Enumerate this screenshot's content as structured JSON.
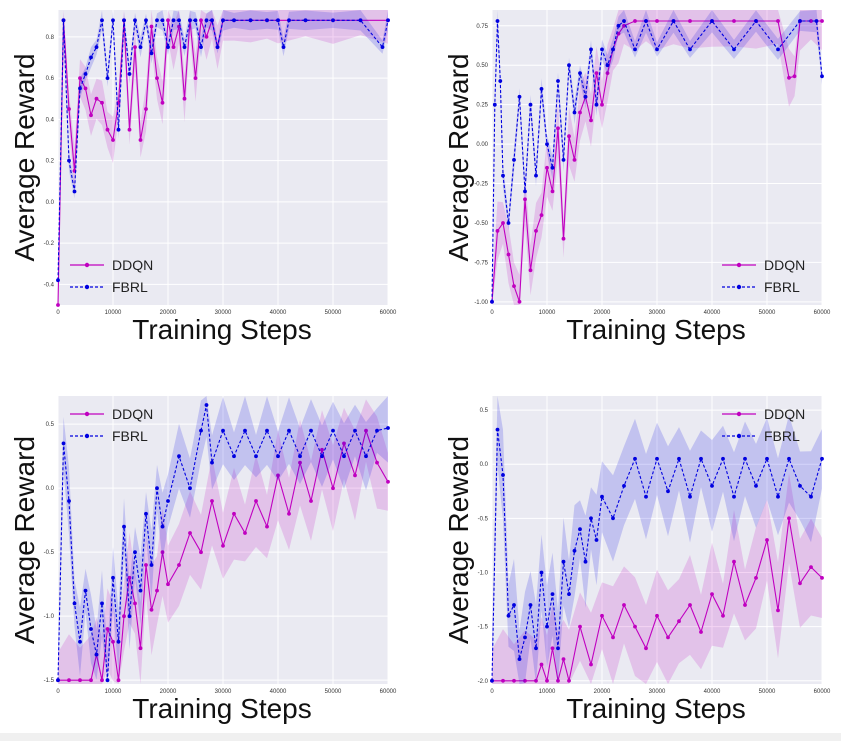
{
  "figure": {
    "colors": {
      "ddqn": "#c000c0",
      "fbrl": "#0000e0",
      "background": "#eaeaf2",
      "grid": "#ffffff"
    }
  },
  "chart_data": [
    {
      "type": "line",
      "title": "",
      "xlabel": "Training Steps",
      "ylabel": "Average Reward",
      "xlim": [
        0,
        60000
      ],
      "ylim": [
        -0.5,
        0.93
      ],
      "xticks": [
        0,
        10000,
        20000,
        30000,
        40000,
        50000,
        60000
      ],
      "xtick_labels": [
        "0",
        "10000",
        "20000",
        "30000",
        "40000",
        "50000",
        "60000"
      ],
      "yticks": [
        -0.4,
        -0.2,
        0.0,
        0.2,
        0.4,
        0.6,
        0.8
      ],
      "ytick_labels": [
        "-0.4",
        "-0.2",
        "0.0",
        "0.2",
        "0.4",
        "0.6",
        "0.8"
      ],
      "legend": "lower-left",
      "series": [
        {
          "name": "DDQN",
          "style": "solid",
          "x": [
            0,
            1000,
            2000,
            3000,
            4000,
            5000,
            6000,
            7000,
            8000,
            9000,
            10000,
            11000,
            12000,
            13000,
            14000,
            15000,
            16000,
            17000,
            18000,
            19000,
            20000,
            21000,
            22000,
            23000,
            24000,
            25000,
            26000,
            27000,
            28000,
            29000,
            30000,
            32000,
            35000,
            38000,
            40000,
            45000,
            50000,
            55000,
            60000
          ],
          "y": [
            -0.5,
            0.88,
            0.45,
            0.15,
            0.6,
            0.55,
            0.42,
            0.5,
            0.48,
            0.35,
            0.3,
            0.48,
            0.88,
            0.35,
            0.75,
            0.3,
            0.45,
            0.85,
            0.6,
            0.48,
            0.88,
            0.75,
            0.85,
            0.5,
            0.88,
            0.6,
            0.88,
            0.8,
            0.88,
            0.75,
            0.88,
            0.88,
            0.88,
            0.88,
            0.88,
            0.88,
            0.88,
            0.88,
            0.88
          ]
        },
        {
          "name": "FBRL",
          "style": "dashed",
          "x": [
            0,
            1000,
            2000,
            3000,
            4000,
            5000,
            6000,
            7000,
            8000,
            9000,
            10000,
            11000,
            12000,
            13000,
            14000,
            15000,
            16000,
            17000,
            18000,
            19000,
            20000,
            21000,
            22000,
            23000,
            24000,
            25000,
            26000,
            27000,
            28000,
            29000,
            30000,
            32000,
            35000,
            38000,
            40000,
            41000,
            42000,
            45000,
            50000,
            55000,
            59000,
            60000
          ],
          "y": [
            -0.38,
            0.88,
            0.2,
            0.05,
            0.55,
            0.62,
            0.7,
            0.75,
            0.88,
            0.6,
            0.88,
            0.35,
            0.88,
            0.62,
            0.88,
            0.75,
            0.88,
            0.72,
            0.88,
            0.88,
            0.75,
            0.88,
            0.88,
            0.75,
            0.88,
            0.88,
            0.75,
            0.88,
            0.88,
            0.75,
            0.88,
            0.88,
            0.88,
            0.88,
            0.88,
            0.75,
            0.88,
            0.88,
            0.88,
            0.88,
            0.75,
            0.88
          ]
        }
      ]
    },
    {
      "type": "line",
      "title": "",
      "xlabel": "Training Steps",
      "ylabel": "Average Reward",
      "xlim": [
        0,
        60000
      ],
      "ylim": [
        -1.02,
        0.85
      ],
      "xticks": [
        0,
        10000,
        20000,
        30000,
        40000,
        50000,
        60000
      ],
      "xtick_labels": [
        "0",
        "10000",
        "20000",
        "30000",
        "40000",
        "50000",
        "60000"
      ],
      "yticks": [
        -1.0,
        -0.75,
        -0.5,
        -0.25,
        0.0,
        0.25,
        0.5,
        0.75
      ],
      "ytick_labels": [
        "-1.00",
        "-0.75",
        "-0.50",
        "-0.25",
        "0.00",
        "0.25",
        "0.50",
        "0.75"
      ],
      "legend": "lower-right",
      "series": [
        {
          "name": "DDQN",
          "style": "solid",
          "x": [
            0,
            1000,
            2000,
            3000,
            4000,
            5000,
            6000,
            7000,
            8000,
            9000,
            10000,
            11000,
            12000,
            13000,
            14000,
            15000,
            16000,
            17000,
            18000,
            19000,
            20000,
            21000,
            22000,
            23000,
            24000,
            26000,
            28000,
            30000,
            33000,
            36000,
            40000,
            44000,
            48000,
            52000,
            54000,
            55000,
            56000,
            58000,
            60000
          ],
          "y": [
            -1.0,
            -0.55,
            -0.5,
            -0.7,
            -0.9,
            -1.0,
            -0.35,
            -0.8,
            -0.55,
            -0.45,
            -0.15,
            -0.3,
            0.1,
            -0.6,
            0.05,
            -0.1,
            0.2,
            0.3,
            0.15,
            0.45,
            0.25,
            0.45,
            0.6,
            0.7,
            0.75,
            0.78,
            0.78,
            0.78,
            0.78,
            0.78,
            0.78,
            0.78,
            0.78,
            0.78,
            0.42,
            0.43,
            0.78,
            0.78,
            0.78
          ]
        },
        {
          "name": "FBRL",
          "style": "dashed",
          "x": [
            0,
            500,
            1000,
            1500,
            2000,
            3000,
            4000,
            5000,
            6000,
            7000,
            8000,
            9000,
            10000,
            11000,
            12000,
            13000,
            14000,
            15000,
            16000,
            17000,
            18000,
            19000,
            20000,
            21000,
            22000,
            23000,
            24000,
            26000,
            28000,
            30000,
            33000,
            36000,
            40000,
            44000,
            48000,
            52000,
            56000,
            59000,
            60000
          ],
          "y": [
            -1.0,
            0.25,
            0.78,
            0.4,
            -0.2,
            -0.5,
            -0.1,
            0.3,
            -0.3,
            0.25,
            -0.2,
            0.35,
            0.0,
            -0.15,
            0.4,
            -0.1,
            0.5,
            0.2,
            0.45,
            0.3,
            0.6,
            0.25,
            0.6,
            0.5,
            0.6,
            0.75,
            0.78,
            0.6,
            0.78,
            0.6,
            0.78,
            0.6,
            0.78,
            0.6,
            0.78,
            0.6,
            0.78,
            0.78,
            0.43
          ]
        }
      ]
    },
    {
      "type": "line",
      "title": "",
      "xlabel": "Training Steps",
      "ylabel": "Average Reward",
      "xlim": [
        0,
        60000
      ],
      "ylim": [
        -1.53,
        0.72
      ],
      "xticks": [
        0,
        10000,
        20000,
        30000,
        40000,
        50000,
        60000
      ],
      "xtick_labels": [
        "0",
        "10000",
        "20000",
        "30000",
        "40000",
        "50000",
        "60000"
      ],
      "yticks": [
        -1.5,
        -1.0,
        -0.5,
        0.0,
        0.5
      ],
      "ytick_labels": [
        "-1.5",
        "-1.0",
        "-0.5",
        "0.0",
        "0.5"
      ],
      "legend": "top-left",
      "series": [
        {
          "name": "DDQN",
          "style": "solid",
          "x": [
            0,
            2000,
            4000,
            6000,
            7000,
            8000,
            9000,
            10000,
            11000,
            12000,
            13000,
            14000,
            15000,
            16000,
            17000,
            18000,
            19000,
            20000,
            22000,
            24000,
            26000,
            28000,
            30000,
            32000,
            34000,
            36000,
            38000,
            40000,
            42000,
            44000,
            46000,
            48000,
            50000,
            52000,
            54000,
            56000,
            58000,
            60000
          ],
          "y": [
            -1.5,
            -1.5,
            -1.5,
            -1.5,
            -1.3,
            -1.5,
            -1.1,
            -1.2,
            -1.5,
            -1.0,
            -0.7,
            -0.9,
            -1.25,
            -0.6,
            -0.95,
            -0.8,
            -0.5,
            -0.75,
            -0.6,
            -0.35,
            -0.5,
            -0.1,
            -0.45,
            -0.2,
            -0.35,
            -0.1,
            -0.3,
            0.1,
            -0.2,
            0.2,
            -0.1,
            0.3,
            0.0,
            0.35,
            0.1,
            0.45,
            0.2,
            0.05
          ]
        },
        {
          "name": "FBRL",
          "style": "dashed",
          "x": [
            0,
            1000,
            2000,
            3000,
            4000,
            5000,
            6000,
            7000,
            8000,
            9000,
            10000,
            11000,
            12000,
            13000,
            14000,
            15000,
            16000,
            17000,
            18000,
            19000,
            20000,
            22000,
            24000,
            26000,
            27000,
            28000,
            30000,
            32000,
            34000,
            36000,
            38000,
            40000,
            42000,
            44000,
            46000,
            48000,
            50000,
            52000,
            54000,
            56000,
            58000,
            60000
          ],
          "y": [
            -1.5,
            0.35,
            -0.1,
            -0.9,
            -1.2,
            -0.8,
            -1.1,
            -1.3,
            -0.9,
            -1.5,
            -0.7,
            -1.2,
            -0.3,
            -1.0,
            -0.5,
            -0.8,
            -0.2,
            -0.6,
            0.0,
            -0.3,
            -0.1,
            0.25,
            0.0,
            0.45,
            0.65,
            0.2,
            0.45,
            0.25,
            0.45,
            0.25,
            0.45,
            0.25,
            0.45,
            0.25,
            0.45,
            0.25,
            0.45,
            0.25,
            0.45,
            0.25,
            0.45,
            0.47
          ]
        }
      ]
    },
    {
      "type": "line",
      "title": "",
      "xlabel": "Training Steps",
      "ylabel": "Average Reward",
      "xlim": [
        0,
        60000
      ],
      "ylim": [
        -2.03,
        0.63
      ],
      "xticks": [
        0,
        10000,
        20000,
        30000,
        40000,
        50000,
        60000
      ],
      "xtick_labels": [
        "0",
        "10000",
        "20000",
        "30000",
        "40000",
        "50000",
        "60000"
      ],
      "yticks": [
        -2.0,
        -1.5,
        -1.0,
        -0.5,
        0.0,
        0.5
      ],
      "ytick_labels": [
        "-2.0",
        "-1.5",
        "-1.0",
        "-0.5",
        "0.0",
        "0.5"
      ],
      "legend": "top-right",
      "series": [
        {
          "name": "DDQN",
          "style": "solid",
          "x": [
            0,
            2000,
            4000,
            6000,
            8000,
            9000,
            10000,
            11000,
            12000,
            13000,
            14000,
            16000,
            18000,
            20000,
            22000,
            24000,
            26000,
            28000,
            30000,
            32000,
            34000,
            36000,
            38000,
            40000,
            42000,
            44000,
            46000,
            48000,
            50000,
            52000,
            54000,
            56000,
            58000,
            60000
          ],
          "y": [
            -2.0,
            -2.0,
            -2.0,
            -2.0,
            -2.0,
            -1.85,
            -2.0,
            -1.7,
            -2.0,
            -1.8,
            -2.0,
            -1.5,
            -1.85,
            -1.4,
            -1.6,
            -1.3,
            -1.5,
            -1.7,
            -1.4,
            -1.6,
            -1.45,
            -1.3,
            -1.55,
            -1.2,
            -1.4,
            -0.9,
            -1.3,
            -1.05,
            -0.7,
            -1.35,
            -0.5,
            -1.1,
            -0.95,
            -1.05
          ]
        },
        {
          "name": "FBRL",
          "style": "dashed",
          "x": [
            0,
            1000,
            2000,
            3000,
            4000,
            5000,
            6000,
            7000,
            8000,
            9000,
            10000,
            11000,
            12000,
            13000,
            14000,
            15000,
            16000,
            17000,
            18000,
            19000,
            20000,
            22000,
            24000,
            26000,
            28000,
            30000,
            32000,
            34000,
            36000,
            38000,
            40000,
            42000,
            44000,
            46000,
            48000,
            50000,
            52000,
            54000,
            56000,
            58000,
            60000
          ],
          "y": [
            -2.0,
            0.32,
            -0.1,
            -1.4,
            -1.3,
            -1.8,
            -1.6,
            -1.3,
            -1.7,
            -1.0,
            -1.5,
            -1.2,
            -1.7,
            -0.9,
            -1.2,
            -0.8,
            -0.6,
            -0.9,
            -0.5,
            -0.7,
            -0.3,
            -0.5,
            -0.2,
            0.05,
            -0.3,
            0.05,
            -0.25,
            0.05,
            -0.3,
            0.05,
            -0.2,
            0.05,
            -0.3,
            0.05,
            -0.2,
            0.05,
            -0.3,
            0.05,
            -0.2,
            -0.3,
            0.05
          ]
        }
      ]
    }
  ]
}
